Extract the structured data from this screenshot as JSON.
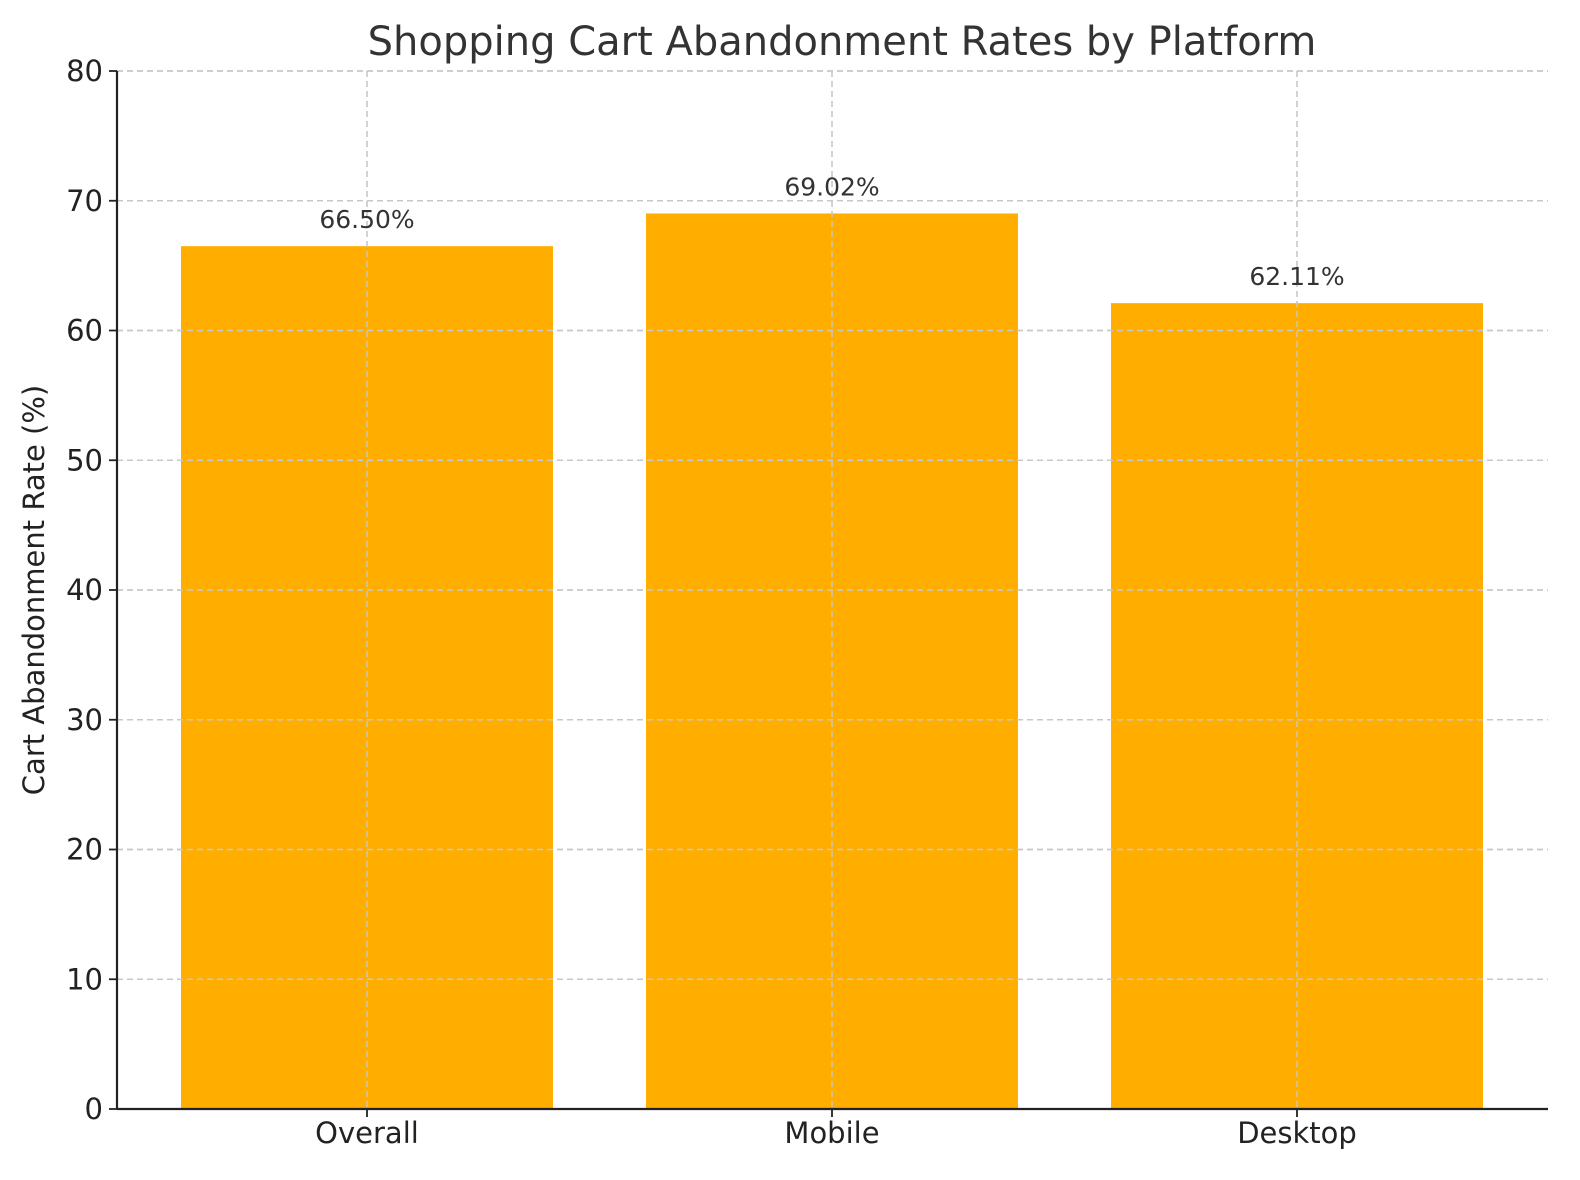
{
  "chart_data": {
    "type": "bar",
    "title": "Shopping Cart Abandonment Rates by Platform",
    "xlabel": "",
    "ylabel": "Cart Abandonment Rate (%)",
    "categories": [
      "Overall",
      "Mobile",
      "Desktop"
    ],
    "values": [
      66.5,
      69.02,
      62.11
    ],
    "data_labels": [
      "66.50%",
      "69.02%",
      "62.11%"
    ],
    "ylim": [
      0,
      80
    ],
    "yticks": [
      0,
      10,
      20,
      30,
      40,
      50,
      60,
      70,
      80
    ],
    "grid": true,
    "bar_color": "#FFAE00"
  }
}
